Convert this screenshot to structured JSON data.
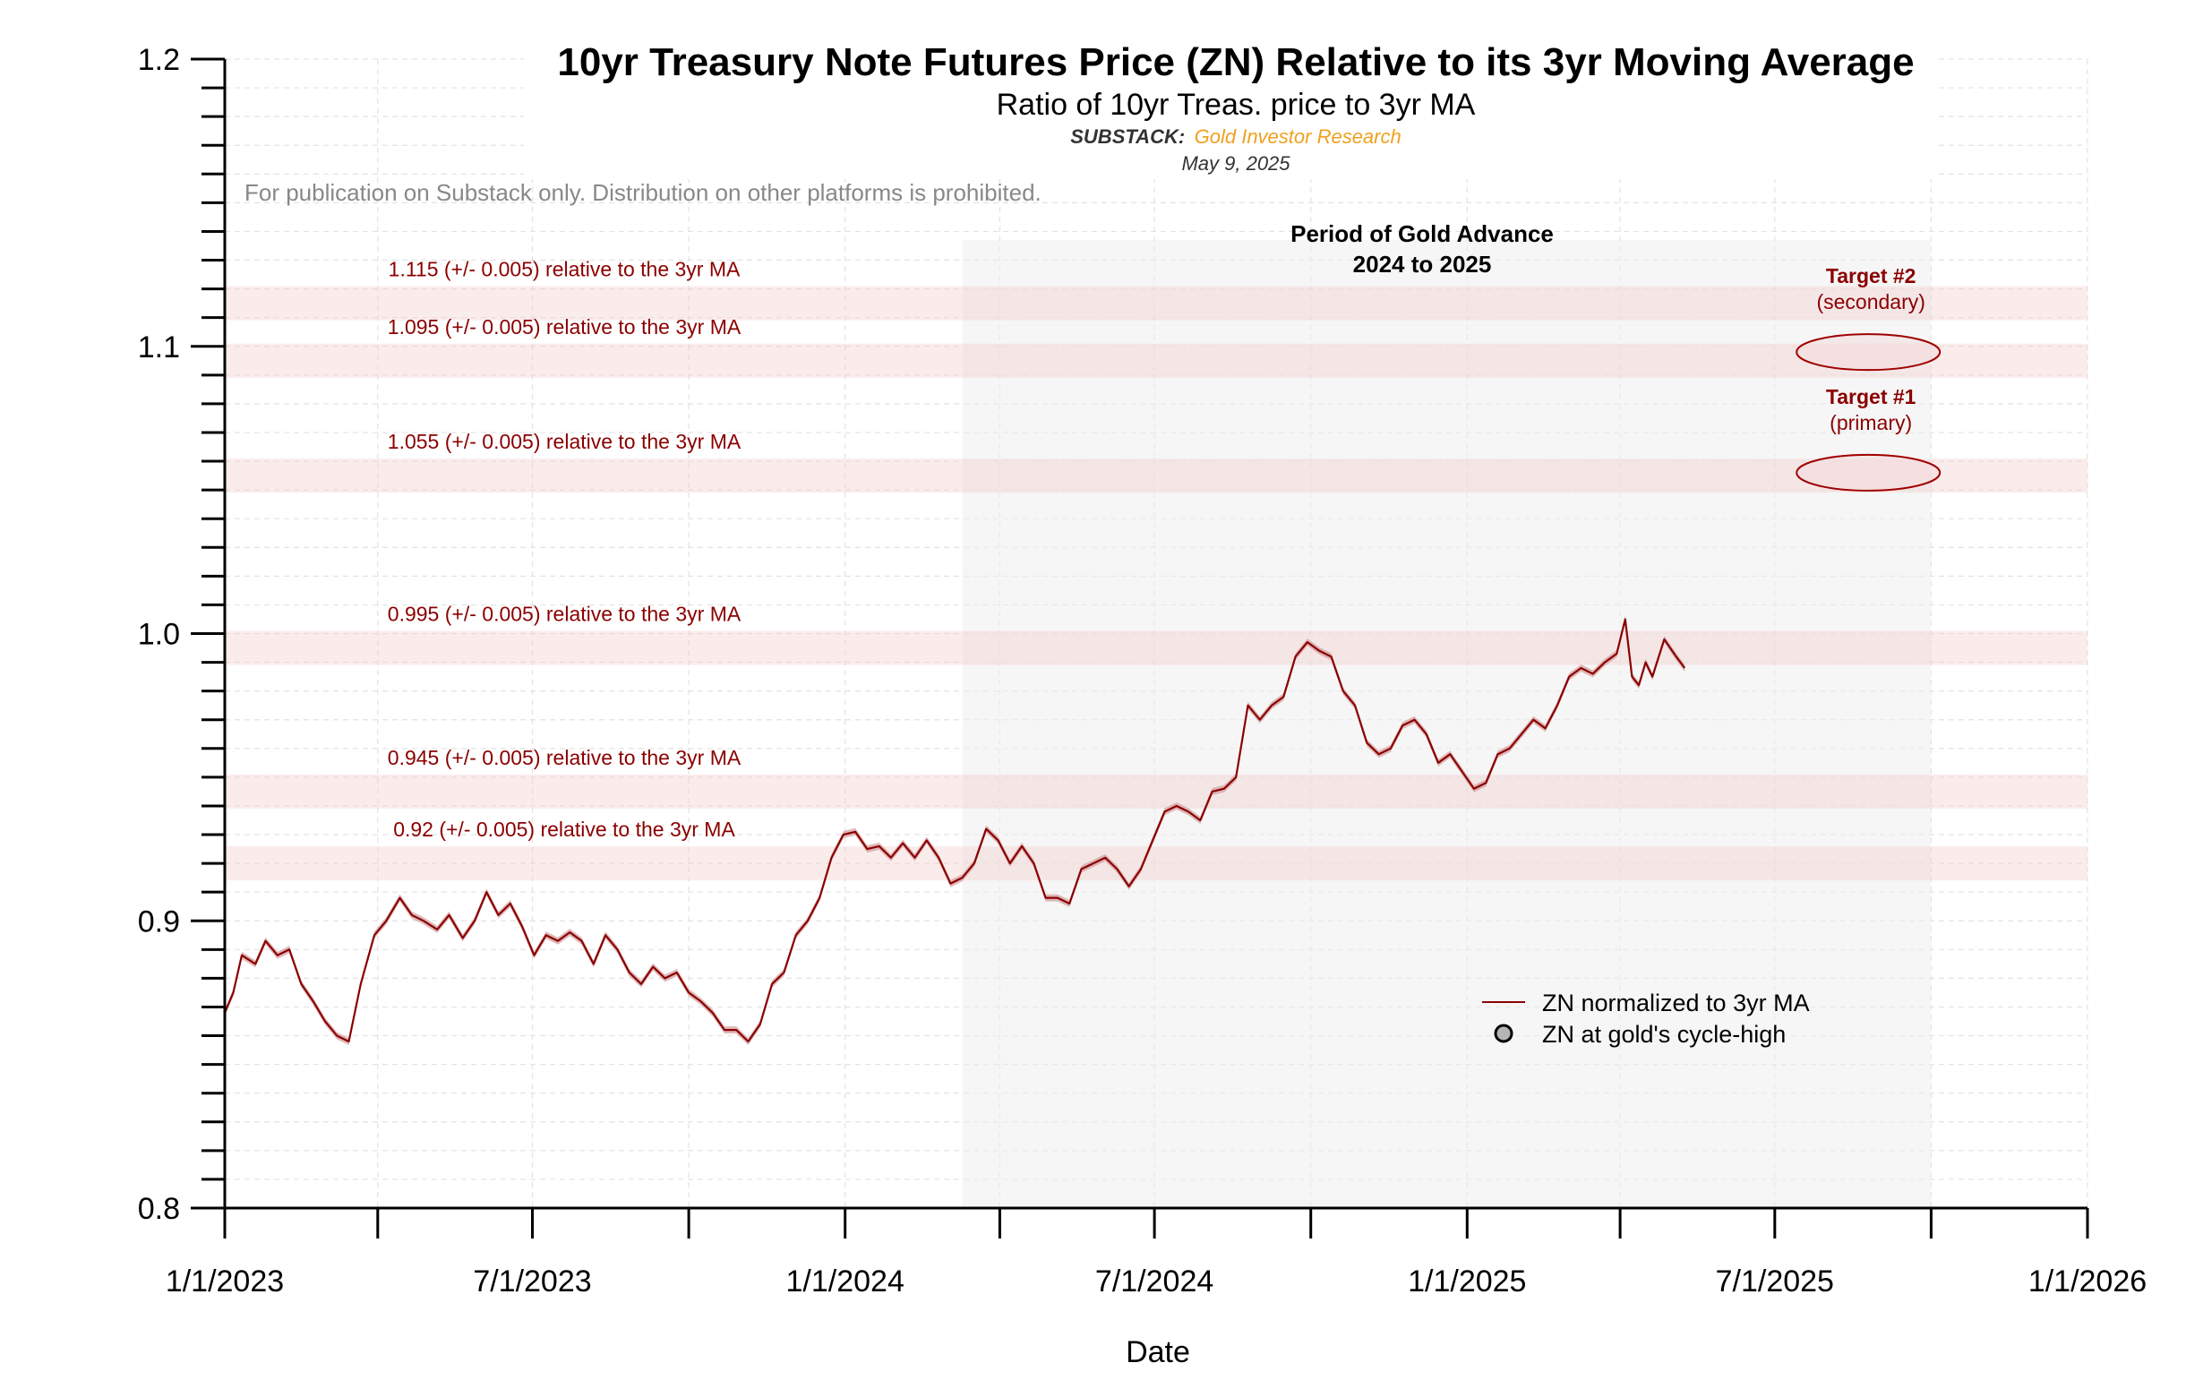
{
  "chart_data": {
    "type": "line",
    "title": "10yr Treasury Note Futures Price (ZN) Relative to its 3yr Moving Average",
    "subtitle": "Ratio of 10yr Treas. price to 3yr MA",
    "substack_label": "SUBSTACK:",
    "substack_name": "Gold Investor Research",
    "date": "May 9, 2025",
    "disclaimer": "For publication on Substack only. Distribution on other platforms is prohibited.",
    "xlabel": "Date",
    "ylabel": "",
    "ylim": [
      0.8,
      1.2
    ],
    "xlim": [
      "2023-01-01",
      "2026-01-01"
    ],
    "x_ticks": [
      "1/1/2023",
      "7/1/2023",
      "1/1/2024",
      "7/1/2024",
      "1/1/2025",
      "7/1/2025",
      "1/1/2026"
    ],
    "y_ticks": [
      "0.8",
      "0.9",
      "1.0",
      "1.1",
      "1.2"
    ],
    "grid": true,
    "shaded_period": {
      "label_line1": "Period of Gold Advance",
      "label_line2": "2024 to 2025",
      "start": "2024-03-10",
      "end": "2025-10-01"
    },
    "bands": [
      {
        "center": 1.115,
        "halfwidth": 0.005,
        "label": "1.115 (+/- 0.005) relative to the 3yr MA"
      },
      {
        "center": 1.095,
        "halfwidth": 0.005,
        "label": "1.095 (+/- 0.005) relative to the 3yr MA"
      },
      {
        "center": 1.055,
        "halfwidth": 0.005,
        "label": "1.055 (+/- 0.005) relative to the 3yr MA"
      },
      {
        "center": 0.995,
        "halfwidth": 0.005,
        "label": "0.995 (+/- 0.005) relative to the 3yr MA"
      },
      {
        "center": 0.945,
        "halfwidth": 0.005,
        "label": "0.945 (+/- 0.005) relative to the 3yr MA"
      },
      {
        "center": 0.92,
        "halfwidth": 0.005,
        "label": "0.92 (+/- 0.005) relative to the 3yr MA"
      }
    ],
    "targets": [
      {
        "title": "Target #2",
        "subtitle": "(secondary)",
        "x": "2025-08-25",
        "y": 1.098
      },
      {
        "title": "Target #1",
        "subtitle": "(primary)",
        "x": "2025-08-25",
        "y": 1.056
      }
    ],
    "legend": {
      "position": "lower-right",
      "entries": [
        "ZN normalized to 3yr MA",
        "ZN at gold's cycle-high"
      ]
    },
    "series": [
      {
        "name": "ZN normalized to 3yr MA",
        "color": "#8b0000",
        "x": [
          "2023-01-01",
          "2023-01-06",
          "2023-01-11",
          "2023-01-19",
          "2023-01-25",
          "2023-02-01",
          "2023-02-08",
          "2023-02-15",
          "2023-02-22",
          "2023-03-01",
          "2023-03-08",
          "2023-03-15",
          "2023-03-22",
          "2023-03-30",
          "2023-04-06",
          "2023-04-14",
          "2023-04-21",
          "2023-04-28",
          "2023-05-06",
          "2023-05-13",
          "2023-05-21",
          "2023-05-28",
          "2023-06-04",
          "2023-06-11",
          "2023-06-18",
          "2023-06-25",
          "2023-07-02",
          "2023-07-09",
          "2023-07-16",
          "2023-07-23",
          "2023-07-30",
          "2023-08-06",
          "2023-08-13",
          "2023-08-20",
          "2023-08-27",
          "2023-09-03",
          "2023-09-10",
          "2023-09-17",
          "2023-09-24",
          "2023-10-01",
          "2023-10-08",
          "2023-10-15",
          "2023-10-22",
          "2023-10-29",
          "2023-11-05",
          "2023-11-12",
          "2023-11-19",
          "2023-11-26",
          "2023-12-03",
          "2023-12-10",
          "2023-12-17",
          "2023-12-24",
          "2023-12-31",
          "2024-01-07",
          "2024-01-14",
          "2024-01-21",
          "2024-01-28",
          "2024-02-04",
          "2024-02-11",
          "2024-02-18",
          "2024-02-25",
          "2024-03-03",
          "2024-03-10",
          "2024-03-17",
          "2024-03-24",
          "2024-03-31",
          "2024-04-07",
          "2024-04-14",
          "2024-04-21",
          "2024-04-28",
          "2024-05-05",
          "2024-05-12",
          "2024-05-19",
          "2024-05-26",
          "2024-06-02",
          "2024-06-09",
          "2024-06-16",
          "2024-06-23",
          "2024-06-30",
          "2024-07-07",
          "2024-07-14",
          "2024-07-21",
          "2024-07-28",
          "2024-08-04",
          "2024-08-11",
          "2024-08-18",
          "2024-08-25",
          "2024-09-01",
          "2024-09-08",
          "2024-09-15",
          "2024-09-22",
          "2024-09-29",
          "2024-10-06",
          "2024-10-13",
          "2024-10-20",
          "2024-10-27",
          "2024-11-03",
          "2024-11-10",
          "2024-11-17",
          "2024-11-24",
          "2024-12-01",
          "2024-12-08",
          "2024-12-15",
          "2024-12-22",
          "2024-12-29",
          "2025-01-05",
          "2025-01-12",
          "2025-01-19",
          "2025-01-26",
          "2025-02-02",
          "2025-02-09",
          "2025-02-16",
          "2025-02-23",
          "2025-03-02",
          "2025-03-09",
          "2025-03-16",
          "2025-03-23",
          "2025-03-30",
          "2025-04-04",
          "2025-04-08",
          "2025-04-12",
          "2025-04-16",
          "2025-04-20",
          "2025-04-27",
          "2025-05-04",
          "2025-05-09"
        ],
        "values": [
          0.868,
          0.875,
          0.888,
          0.885,
          0.893,
          0.888,
          0.89,
          0.878,
          0.872,
          0.865,
          0.86,
          0.858,
          0.878,
          0.895,
          0.9,
          0.908,
          0.902,
          0.9,
          0.897,
          0.902,
          0.894,
          0.9,
          0.91,
          0.902,
          0.906,
          0.898,
          0.888,
          0.895,
          0.893,
          0.896,
          0.893,
          0.885,
          0.895,
          0.89,
          0.882,
          0.878,
          0.884,
          0.88,
          0.882,
          0.875,
          0.872,
          0.868,
          0.862,
          0.862,
          0.858,
          0.864,
          0.878,
          0.882,
          0.895,
          0.9,
          0.908,
          0.922,
          0.93,
          0.931,
          0.925,
          0.926,
          0.922,
          0.927,
          0.922,
          0.928,
          0.922,
          0.913,
          0.915,
          0.92,
          0.932,
          0.928,
          0.92,
          0.926,
          0.92,
          0.908,
          0.908,
          0.906,
          0.918,
          0.92,
          0.922,
          0.918,
          0.912,
          0.918,
          0.928,
          0.938,
          0.94,
          0.938,
          0.935,
          0.945,
          0.946,
          0.95,
          0.975,
          0.97,
          0.975,
          0.978,
          0.992,
          0.997,
          0.994,
          0.992,
          0.98,
          0.975,
          0.962,
          0.958,
          0.96,
          0.968,
          0.97,
          0.965,
          0.955,
          0.958,
          0.952,
          0.946,
          0.948,
          0.958,
          0.96,
          0.965,
          0.97,
          0.967,
          0.975,
          0.985,
          0.988,
          0.986,
          0.99,
          0.993,
          1.005,
          0.985,
          0.982,
          0.99,
          0.985,
          0.998,
          0.992,
          0.988
        ]
      }
    ]
  }
}
